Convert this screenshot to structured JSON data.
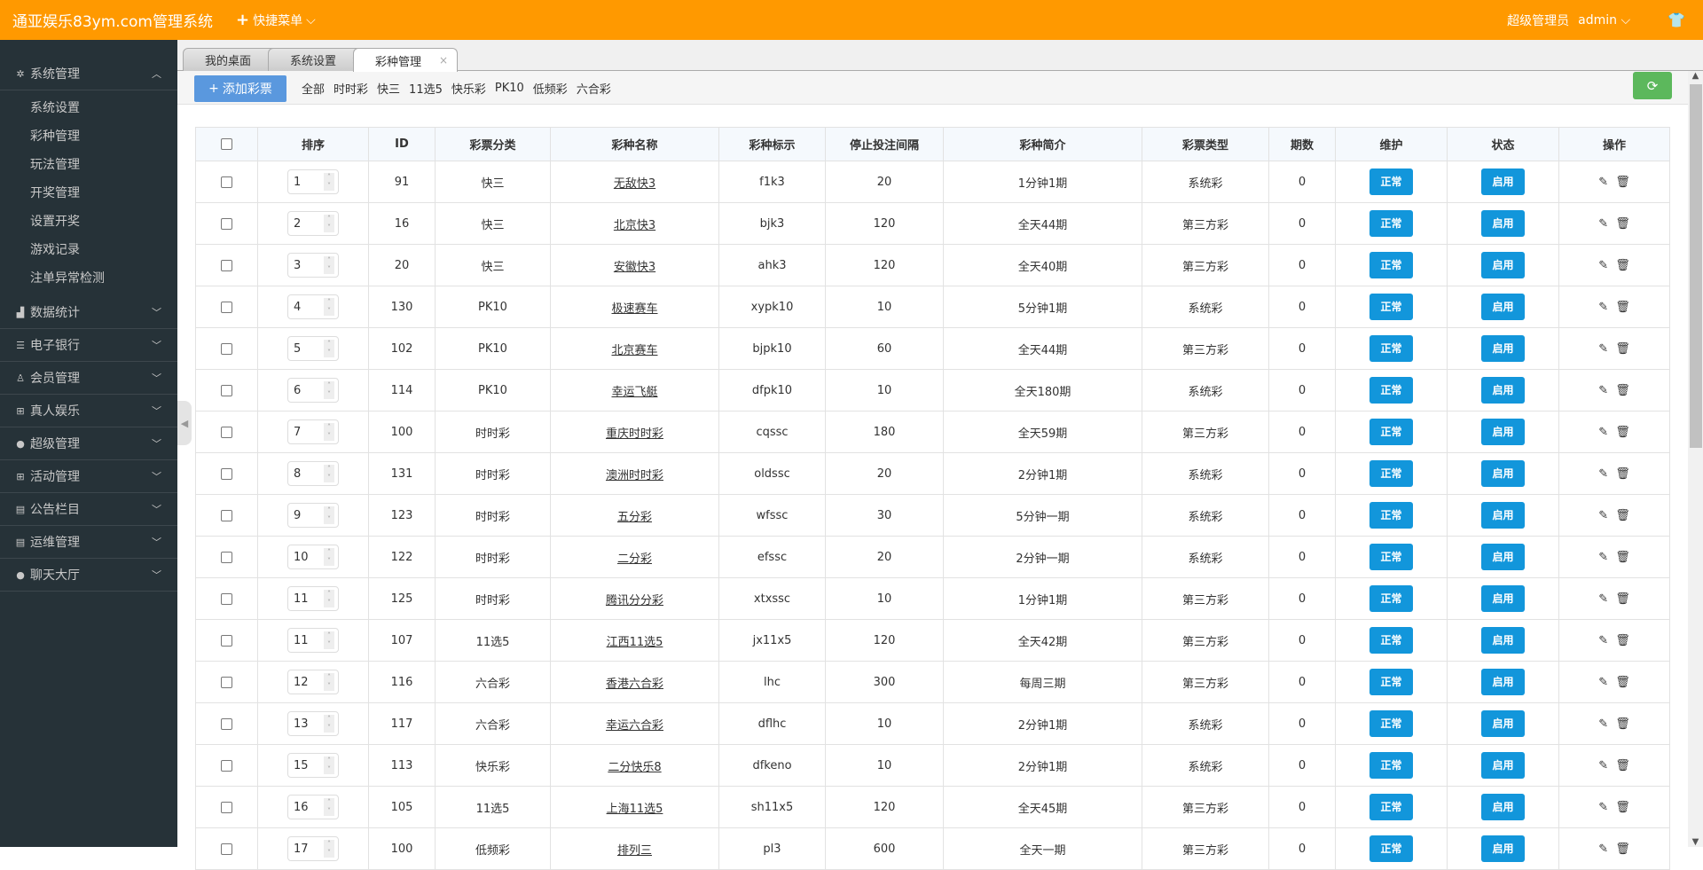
{
  "header": {
    "title": "通亚娱乐83ym.com管理系统",
    "quick_menu": "快捷菜单",
    "role": "超级管理员",
    "user": "admin"
  },
  "sidebar": {
    "groups": [
      {
        "label": "系统管理",
        "icon": "gear-icon",
        "expanded": true,
        "items": [
          "系统设置",
          "彩种管理",
          "玩法管理",
          "开奖管理",
          "设置开奖",
          "游戏记录",
          "注单异常检测"
        ]
      },
      {
        "label": "数据统计",
        "icon": "chart-icon"
      },
      {
        "label": "电子银行",
        "icon": "list-icon"
      },
      {
        "label": "会员管理",
        "icon": "user-outline-icon"
      },
      {
        "label": "真人娱乐",
        "icon": "gift-icon"
      },
      {
        "label": "超级管理",
        "icon": "user-icon"
      },
      {
        "label": "活动管理",
        "icon": "gift-icon"
      },
      {
        "label": "公告栏目",
        "icon": "news-icon"
      },
      {
        "label": "运维管理",
        "icon": "news-icon"
      },
      {
        "label": "聊天大厅",
        "icon": "user-icon"
      }
    ]
  },
  "tabs": [
    {
      "label": "我的桌面",
      "closable": false
    },
    {
      "label": "系统设置",
      "closable": true
    },
    {
      "label": "彩种管理",
      "closable": true,
      "active": true
    }
  ],
  "toolbar": {
    "add_label": "添加彩票",
    "filters": [
      "全部",
      "时时彩",
      "快三",
      "11选5",
      "快乐彩",
      "PK10",
      "低频彩",
      "六合彩"
    ]
  },
  "table": {
    "columns": [
      "排序",
      "ID",
      "彩票分类",
      "彩种名称",
      "彩种标示",
      "停止投注间隔",
      "彩种简介",
      "彩票类型",
      "期数",
      "维护",
      "状态",
      "操作"
    ],
    "maintain_label": "正常",
    "status_label": "启用",
    "rows": [
      [
        "1",
        "91",
        "快三",
        "无敌快3",
        "f1k3",
        "20",
        "1分钟1期",
        "系统彩",
        "0"
      ],
      [
        "2",
        "16",
        "快三",
        "北京快3",
        "bjk3",
        "120",
        "全天44期",
        "第三方彩",
        "0"
      ],
      [
        "3",
        "20",
        "快三",
        "安徽快3",
        "ahk3",
        "120",
        "全天40期",
        "第三方彩",
        "0"
      ],
      [
        "4",
        "130",
        "PK10",
        "极速赛车",
        "xypk10",
        "10",
        "5分钟1期",
        "系统彩",
        "0"
      ],
      [
        "5",
        "102",
        "PK10",
        "北京赛车",
        "bjpk10",
        "60",
        "全天44期",
        "第三方彩",
        "0"
      ],
      [
        "6",
        "114",
        "PK10",
        "幸运飞艇",
        "dfpk10",
        "10",
        "全天180期",
        "系统彩",
        "0"
      ],
      [
        "7",
        "100",
        "时时彩",
        "重庆时时彩",
        "cqssc",
        "180",
        "全天59期",
        "第三方彩",
        "0"
      ],
      [
        "8",
        "131",
        "时时彩",
        "澳洲时时彩",
        "oldssc",
        "20",
        "2分钟1期",
        "系统彩",
        "0"
      ],
      [
        "9",
        "123",
        "时时彩",
        "五分彩",
        "wfssc",
        "30",
        "5分钟一期",
        "系统彩",
        "0"
      ],
      [
        "10",
        "122",
        "时时彩",
        "二分彩",
        "efssc",
        "20",
        "2分钟一期",
        "系统彩",
        "0"
      ],
      [
        "11",
        "125",
        "时时彩",
        "腾讯分分彩",
        "xtxssc",
        "10",
        "1分钟1期",
        "第三方彩",
        "0"
      ],
      [
        "11",
        "107",
        "11选5",
        "江西11选5",
        "jx11x5",
        "120",
        "全天42期",
        "第三方彩",
        "0"
      ],
      [
        "12",
        "116",
        "六合彩",
        "香港六合彩",
        "lhc",
        "300",
        "每周三期",
        "第三方彩",
        "0"
      ],
      [
        "13",
        "117",
        "六合彩",
        "幸运六合彩",
        "dflhc",
        "10",
        "2分钟1期",
        "系统彩",
        "0"
      ],
      [
        "15",
        "113",
        "快乐彩",
        "二分快乐8",
        "dfkeno",
        "10",
        "2分钟1期",
        "系统彩",
        "0"
      ],
      [
        "16",
        "105",
        "11选5",
        "上海11选5",
        "sh11x5",
        "120",
        "全天45期",
        "第三方彩",
        "0"
      ],
      [
        "17",
        "100",
        "低频彩",
        "排列三",
        "pl3",
        "600",
        "全天一期",
        "第三方彩",
        "0"
      ]
    ]
  },
  "colors": {
    "header": "#ff9900",
    "sidebar": "#263238",
    "add_button": "#5a98de",
    "refresh_button": "#5cb85c",
    "row_button": "#1296db"
  }
}
